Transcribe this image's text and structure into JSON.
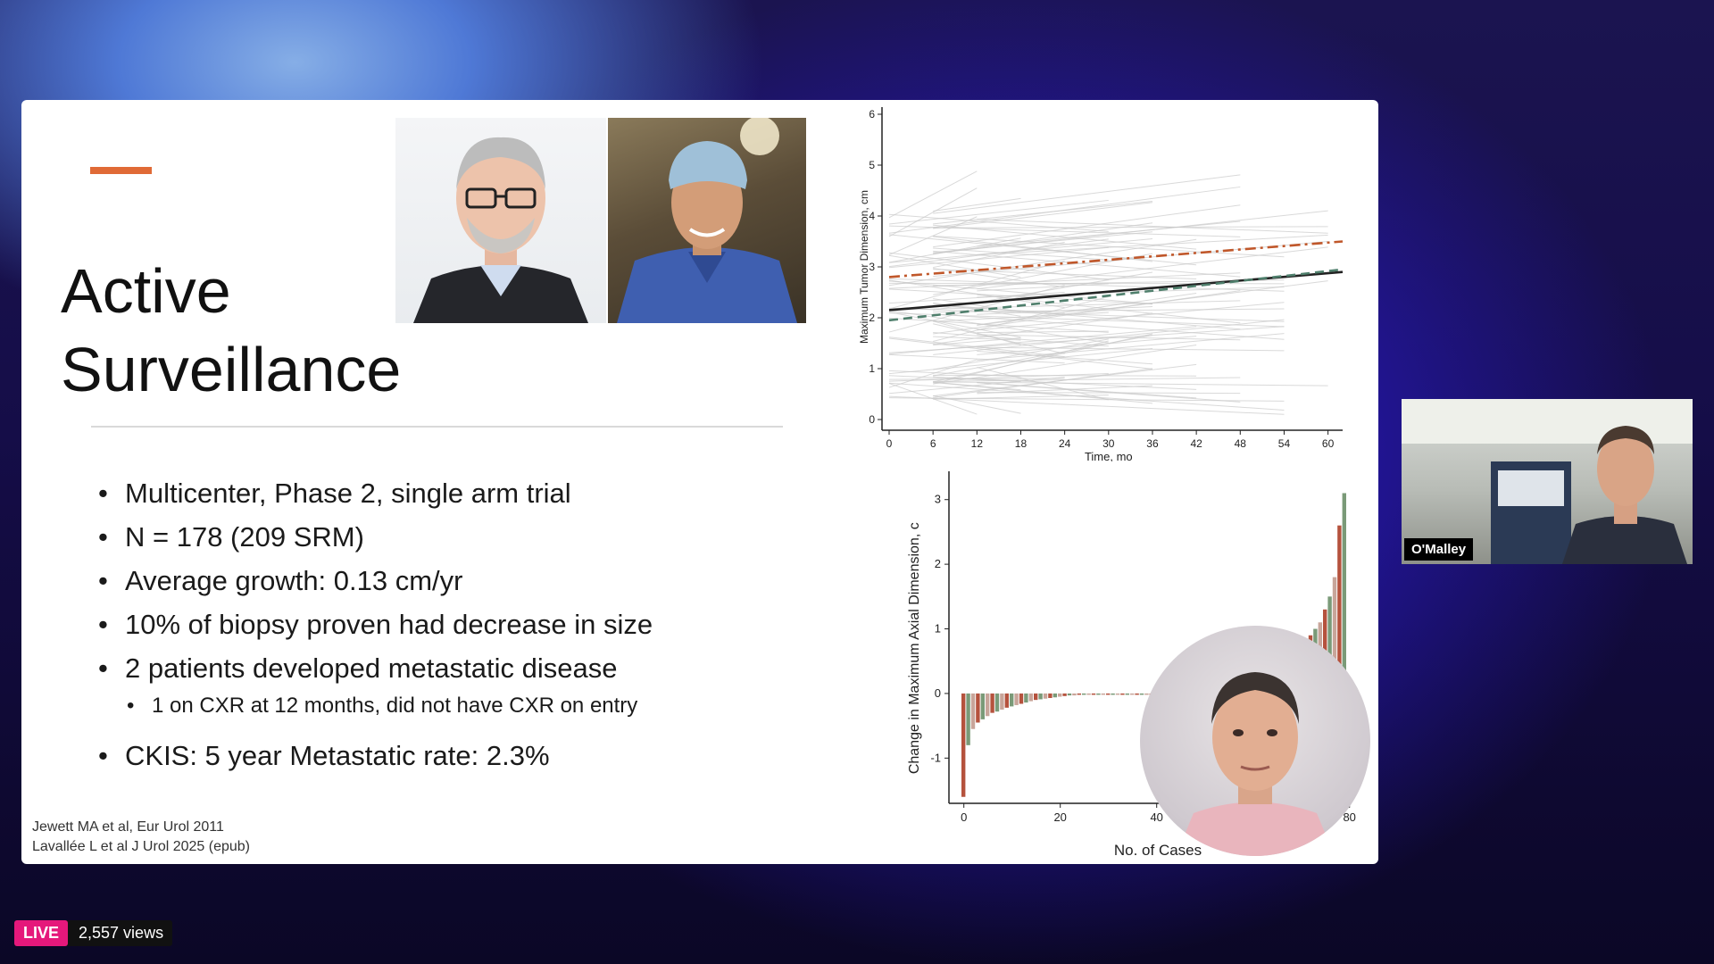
{
  "slide": {
    "title": "Active\nSurveillance",
    "bullets": [
      "Multicenter, Phase 2, single arm trial",
      "N = 178 (209 SRM)",
      "Average growth: 0.13 cm/yr",
      "10% of biopsy proven had decrease in size",
      "2 patients developed metastatic disease"
    ],
    "sub_bullet": "1 on CXR at 12 months, did not have CXR on entry",
    "last_bullet": "CKIS: 5 year Metastatic rate: 2.3%",
    "citations": [
      "Jewett MA et al, Eur Urol 2011",
      "Lavallée L et al J Urol 2025 (epub)"
    ],
    "accent_color": "#e06a36"
  },
  "chart_data": [
    {
      "type": "line",
      "xlabel": "Time, mo",
      "ylabel": "Maximum Tumor Dimension, cm",
      "x_ticks": [
        0,
        6,
        12,
        18,
        24,
        30,
        36,
        42,
        48,
        54,
        60
      ],
      "y_ticks": [
        0,
        1,
        2,
        3,
        4,
        5,
        6
      ],
      "xlim": [
        0,
        62
      ],
      "ylim": [
        0,
        6
      ],
      "series": [
        {
          "style": "dash-dot",
          "color": "#c0572a",
          "x": [
            0,
            62
          ],
          "y": [
            2.8,
            3.5
          ]
        },
        {
          "style": "solid",
          "color": "#222222",
          "x": [
            0,
            62
          ],
          "y": [
            2.15,
            2.9
          ]
        },
        {
          "style": "dashed",
          "color": "#4f7f6c",
          "x": [
            0,
            62
          ],
          "y": [
            1.95,
            2.95
          ]
        }
      ]
    },
    {
      "type": "bar",
      "xlabel": "No. of Cases",
      "ylabel": "Change in Maximum Axial Dimension, c",
      "x_ticks": [
        0,
        20,
        40,
        60,
        80
      ],
      "y_ticks": [
        -1,
        0,
        1,
        2,
        3
      ],
      "ylim": [
        -1.7,
        3.3
      ],
      "values": [
        -1.6,
        -0.8,
        -0.55,
        -0.45,
        -0.4,
        -0.35,
        -0.3,
        -0.28,
        -0.25,
        -0.22,
        -0.2,
        -0.18,
        -0.16,
        -0.14,
        -0.12,
        -0.1,
        -0.09,
        -0.08,
        -0.07,
        -0.06,
        -0.05,
        -0.04,
        -0.03,
        -0.03,
        -0.02,
        -0.02,
        -0.01,
        -0.01,
        0,
        0,
        0,
        0,
        0,
        0,
        0,
        0,
        0,
        0,
        0,
        0,
        0.05,
        0.06,
        0.07,
        0.08,
        0.09,
        0.1,
        0.1,
        0.11,
        0.12,
        0.13,
        0.14,
        0.15,
        0.16,
        0.17,
        0.18,
        0.19,
        0.2,
        0.22,
        0.24,
        0.26,
        0.28,
        0.3,
        0.32,
        0.35,
        0.38,
        0.4,
        0.45,
        0.5,
        0.55,
        0.6,
        0.7,
        0.8,
        0.9,
        1.0,
        1.1,
        1.3,
        1.5,
        1.8,
        2.6,
        3.1
      ],
      "bar_colors": [
        "#b5523d",
        "#7a9a78",
        "#c8a59a"
      ]
    }
  ],
  "speakers": {
    "tile_name": "O'Malley"
  },
  "stream": {
    "live_label": "LIVE",
    "views": "2,557 views"
  }
}
